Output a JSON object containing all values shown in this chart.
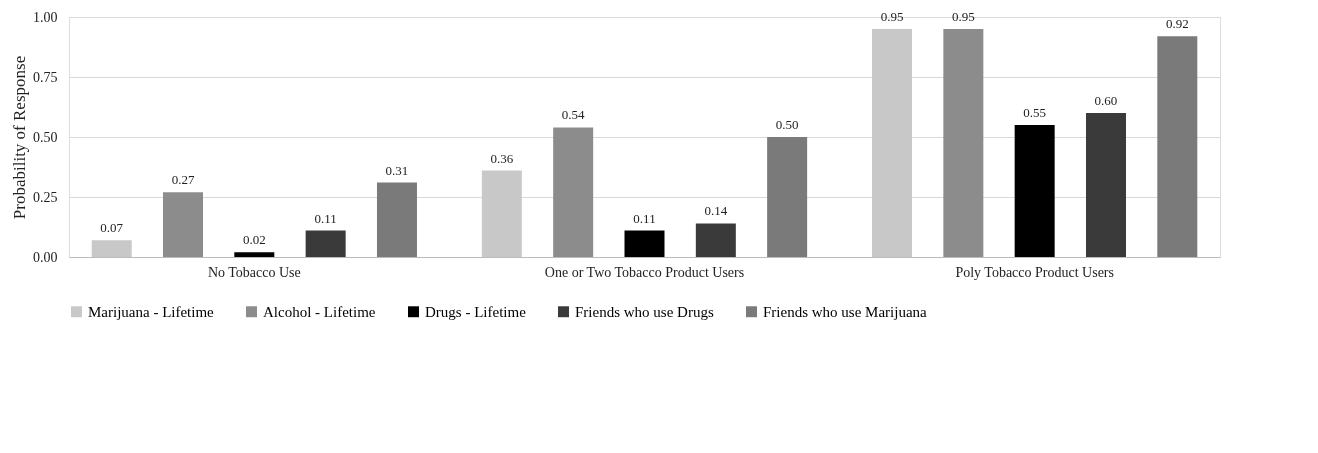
{
  "chart_data": {
    "type": "bar",
    "ylabel": "Probability of Response",
    "categories": [
      "No Tobacco Use",
      "One or Two Tobacco Product Users",
      "Poly Tobacco Product Users"
    ],
    "series": [
      {
        "name": "Marijuana - Lifetime",
        "color": "#c8c8c8",
        "values": [
          0.07,
          0.36,
          0.95
        ],
        "value_labels": [
          "0.07",
          "0.36",
          "0.95"
        ]
      },
      {
        "name": "Alcohol - Lifetime",
        "color": "#8c8c8c",
        "values": [
          0.27,
          0.54,
          0.95
        ],
        "value_labels": [
          "0.27",
          "0.54",
          "0.95"
        ]
      },
      {
        "name": "Drugs - Lifetime",
        "color": "#000000",
        "values": [
          0.02,
          0.11,
          0.55
        ],
        "value_labels": [
          "0.02",
          "0.11",
          "0.55"
        ]
      },
      {
        "name": "Friends who use Drugs",
        "color": "#3a3a3a",
        "values": [
          0.11,
          0.14,
          0.6
        ],
        "value_labels": [
          "0.11",
          "0.14",
          "0.60"
        ]
      },
      {
        "name": "Friends who use Marijuana",
        "color": "#7a7a7a",
        "values": [
          0.31,
          0.5,
          0.92
        ],
        "value_labels": [
          "0.31",
          "0.50",
          "0.92"
        ]
      }
    ],
    "ylim": [
      0,
      1
    ],
    "yticks": [
      {
        "value": 0,
        "label": "0.00"
      },
      {
        "value": 0.25,
        "label": "0.25"
      },
      {
        "value": 0.5,
        "label": "0.50"
      },
      {
        "value": 0.75,
        "label": "0.75"
      },
      {
        "value": 1,
        "label": "1.00"
      }
    ],
    "grid": "y",
    "legend": "bottom"
  }
}
